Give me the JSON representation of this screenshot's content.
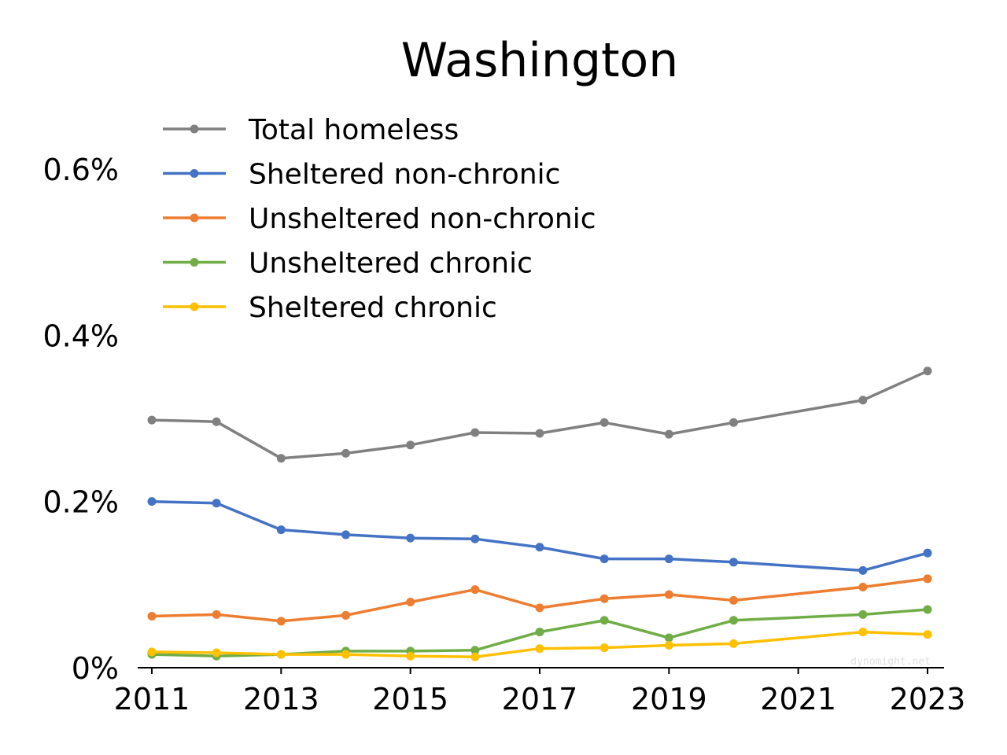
{
  "chart_data": {
    "type": "line",
    "title": "Washington",
    "xlabel": "",
    "ylabel": "",
    "x": [
      2011,
      2012,
      2013,
      2014,
      2015,
      2016,
      2017,
      2018,
      2019,
      2020,
      2022,
      2023
    ],
    "xticks": [
      2011,
      2013,
      2015,
      2017,
      2019,
      2021,
      2023
    ],
    "xtick_labels": [
      "2011",
      "2013",
      "2015",
      "2017",
      "2019",
      "2021",
      "2023"
    ],
    "xlim": [
      2010.8,
      2023.25
    ],
    "ylim": [
      0,
      0.7
    ],
    "yticks": [
      0,
      0.2,
      0.4,
      0.6
    ],
    "ytick_labels": [
      "0%",
      "0.2%",
      "0.4%",
      "0.6%"
    ],
    "legend_position": "top-left",
    "grid": false,
    "series": [
      {
        "name": "Total homeless",
        "color": "#808080",
        "values": [
          0.298,
          0.296,
          0.252,
          0.258,
          0.268,
          0.283,
          0.282,
          0.295,
          0.281,
          0.295,
          0.322,
          0.357
        ]
      },
      {
        "name": "Sheltered non-chronic",
        "color": "#4472c4",
        "values": [
          0.2,
          0.198,
          0.166,
          0.16,
          0.156,
          0.155,
          0.145,
          0.131,
          0.131,
          0.127,
          0.117,
          0.138
        ]
      },
      {
        "name": "Unsheltered non-chronic",
        "color": "#ed7d31",
        "values": [
          0.062,
          0.064,
          0.056,
          0.063,
          0.079,
          0.094,
          0.072,
          0.083,
          0.088,
          0.081,
          0.097,
          0.107
        ]
      },
      {
        "name": "Unsheltered chronic",
        "color": "#70ad47",
        "values": [
          0.016,
          0.014,
          0.016,
          0.02,
          0.02,
          0.021,
          0.043,
          0.057,
          0.036,
          0.057,
          0.064,
          0.07
        ]
      },
      {
        "name": "Sheltered chronic",
        "color": "#ffc000",
        "values": [
          0.019,
          0.018,
          0.016,
          0.016,
          0.014,
          0.013,
          0.023,
          0.024,
          0.027,
          0.029,
          0.043,
          0.04
        ]
      }
    ]
  },
  "watermark": "dynomight.net"
}
